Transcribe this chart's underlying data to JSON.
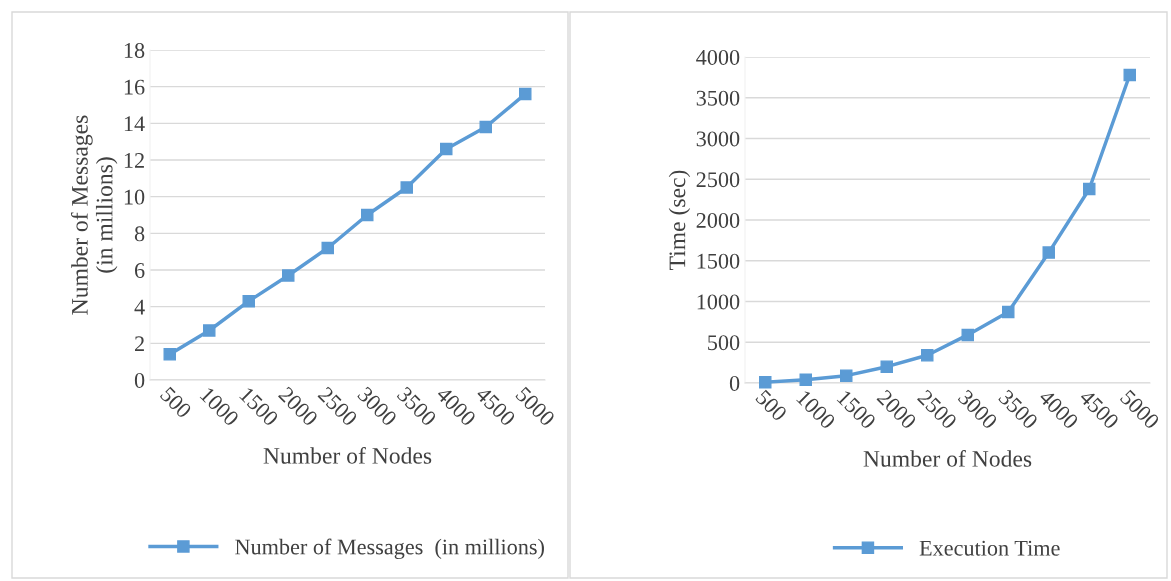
{
  "chart_data": [
    {
      "type": "line",
      "xlabel": "Number of Nodes",
      "ylabel": "Number of Messages\n(in millions)",
      "categories": [
        "500",
        "1000",
        "1500",
        "2000",
        "2500",
        "3000",
        "3500",
        "4000",
        "4500",
        "5000"
      ],
      "series": [
        {
          "name": "Number of Messages  (in millions)",
          "color": "#5b9bd5",
          "values": [
            1.4,
            2.7,
            4.3,
            5.7,
            7.2,
            9.0,
            10.5,
            12.6,
            13.8,
            15.6
          ]
        }
      ],
      "ylim": [
        0,
        18
      ],
      "yticks": [
        0,
        2,
        4,
        6,
        8,
        10,
        12,
        14,
        16,
        18
      ],
      "grid": "y",
      "legend": "bottom",
      "marker": "square",
      "line_style": "solid"
    },
    {
      "type": "line",
      "xlabel": "Number of Nodes",
      "ylabel": "Time (sec)",
      "categories": [
        "500",
        "1000",
        "1500",
        "2000",
        "2500",
        "3000",
        "3500",
        "4000",
        "4500",
        "5000"
      ],
      "series": [
        {
          "name": "Execution Time",
          "color": "#5b9bd5",
          "values": [
            10,
            40,
            90,
            200,
            340,
            590,
            870,
            1600,
            2380,
            3780
          ]
        }
      ],
      "ylim": [
        0,
        4000
      ],
      "yticks": [
        0,
        500,
        1000,
        1500,
        2000,
        2500,
        3000,
        3500,
        4000
      ],
      "grid": "y",
      "legend": "bottom",
      "marker": "square",
      "line_style": "solid"
    }
  ]
}
